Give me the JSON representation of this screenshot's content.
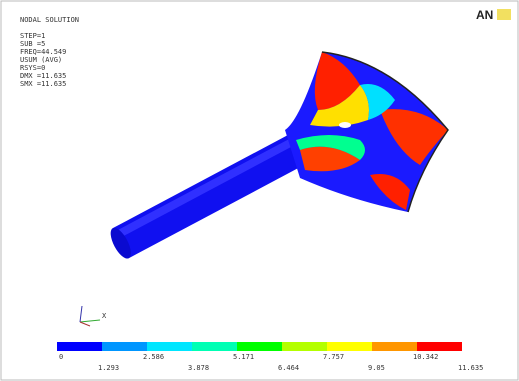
{
  "header": {
    "title": "NODAL SOLUTION",
    "logo": "AN"
  },
  "info": [
    "STEP=1",
    "SUB =5",
    "FREQ=44.549",
    "USUM    (AVG)",
    "RSYS=0",
    "DMX =11.635",
    "SMX =11.635"
  ],
  "triad": {
    "x_label": "X"
  },
  "legend": {
    "labels": [
      "0",
      "1.293",
      "2.586",
      "3.878",
      "5.171",
      "6.464",
      "7.757",
      "9.05",
      "10.342",
      "11.635"
    ],
    "colors": [
      "#0000ff",
      "#0096ff",
      "#00e6ff",
      "#00ffb4",
      "#00ff00",
      "#b4ff00",
      "#ffff00",
      "#ff9600",
      "#ff0000"
    ]
  }
}
